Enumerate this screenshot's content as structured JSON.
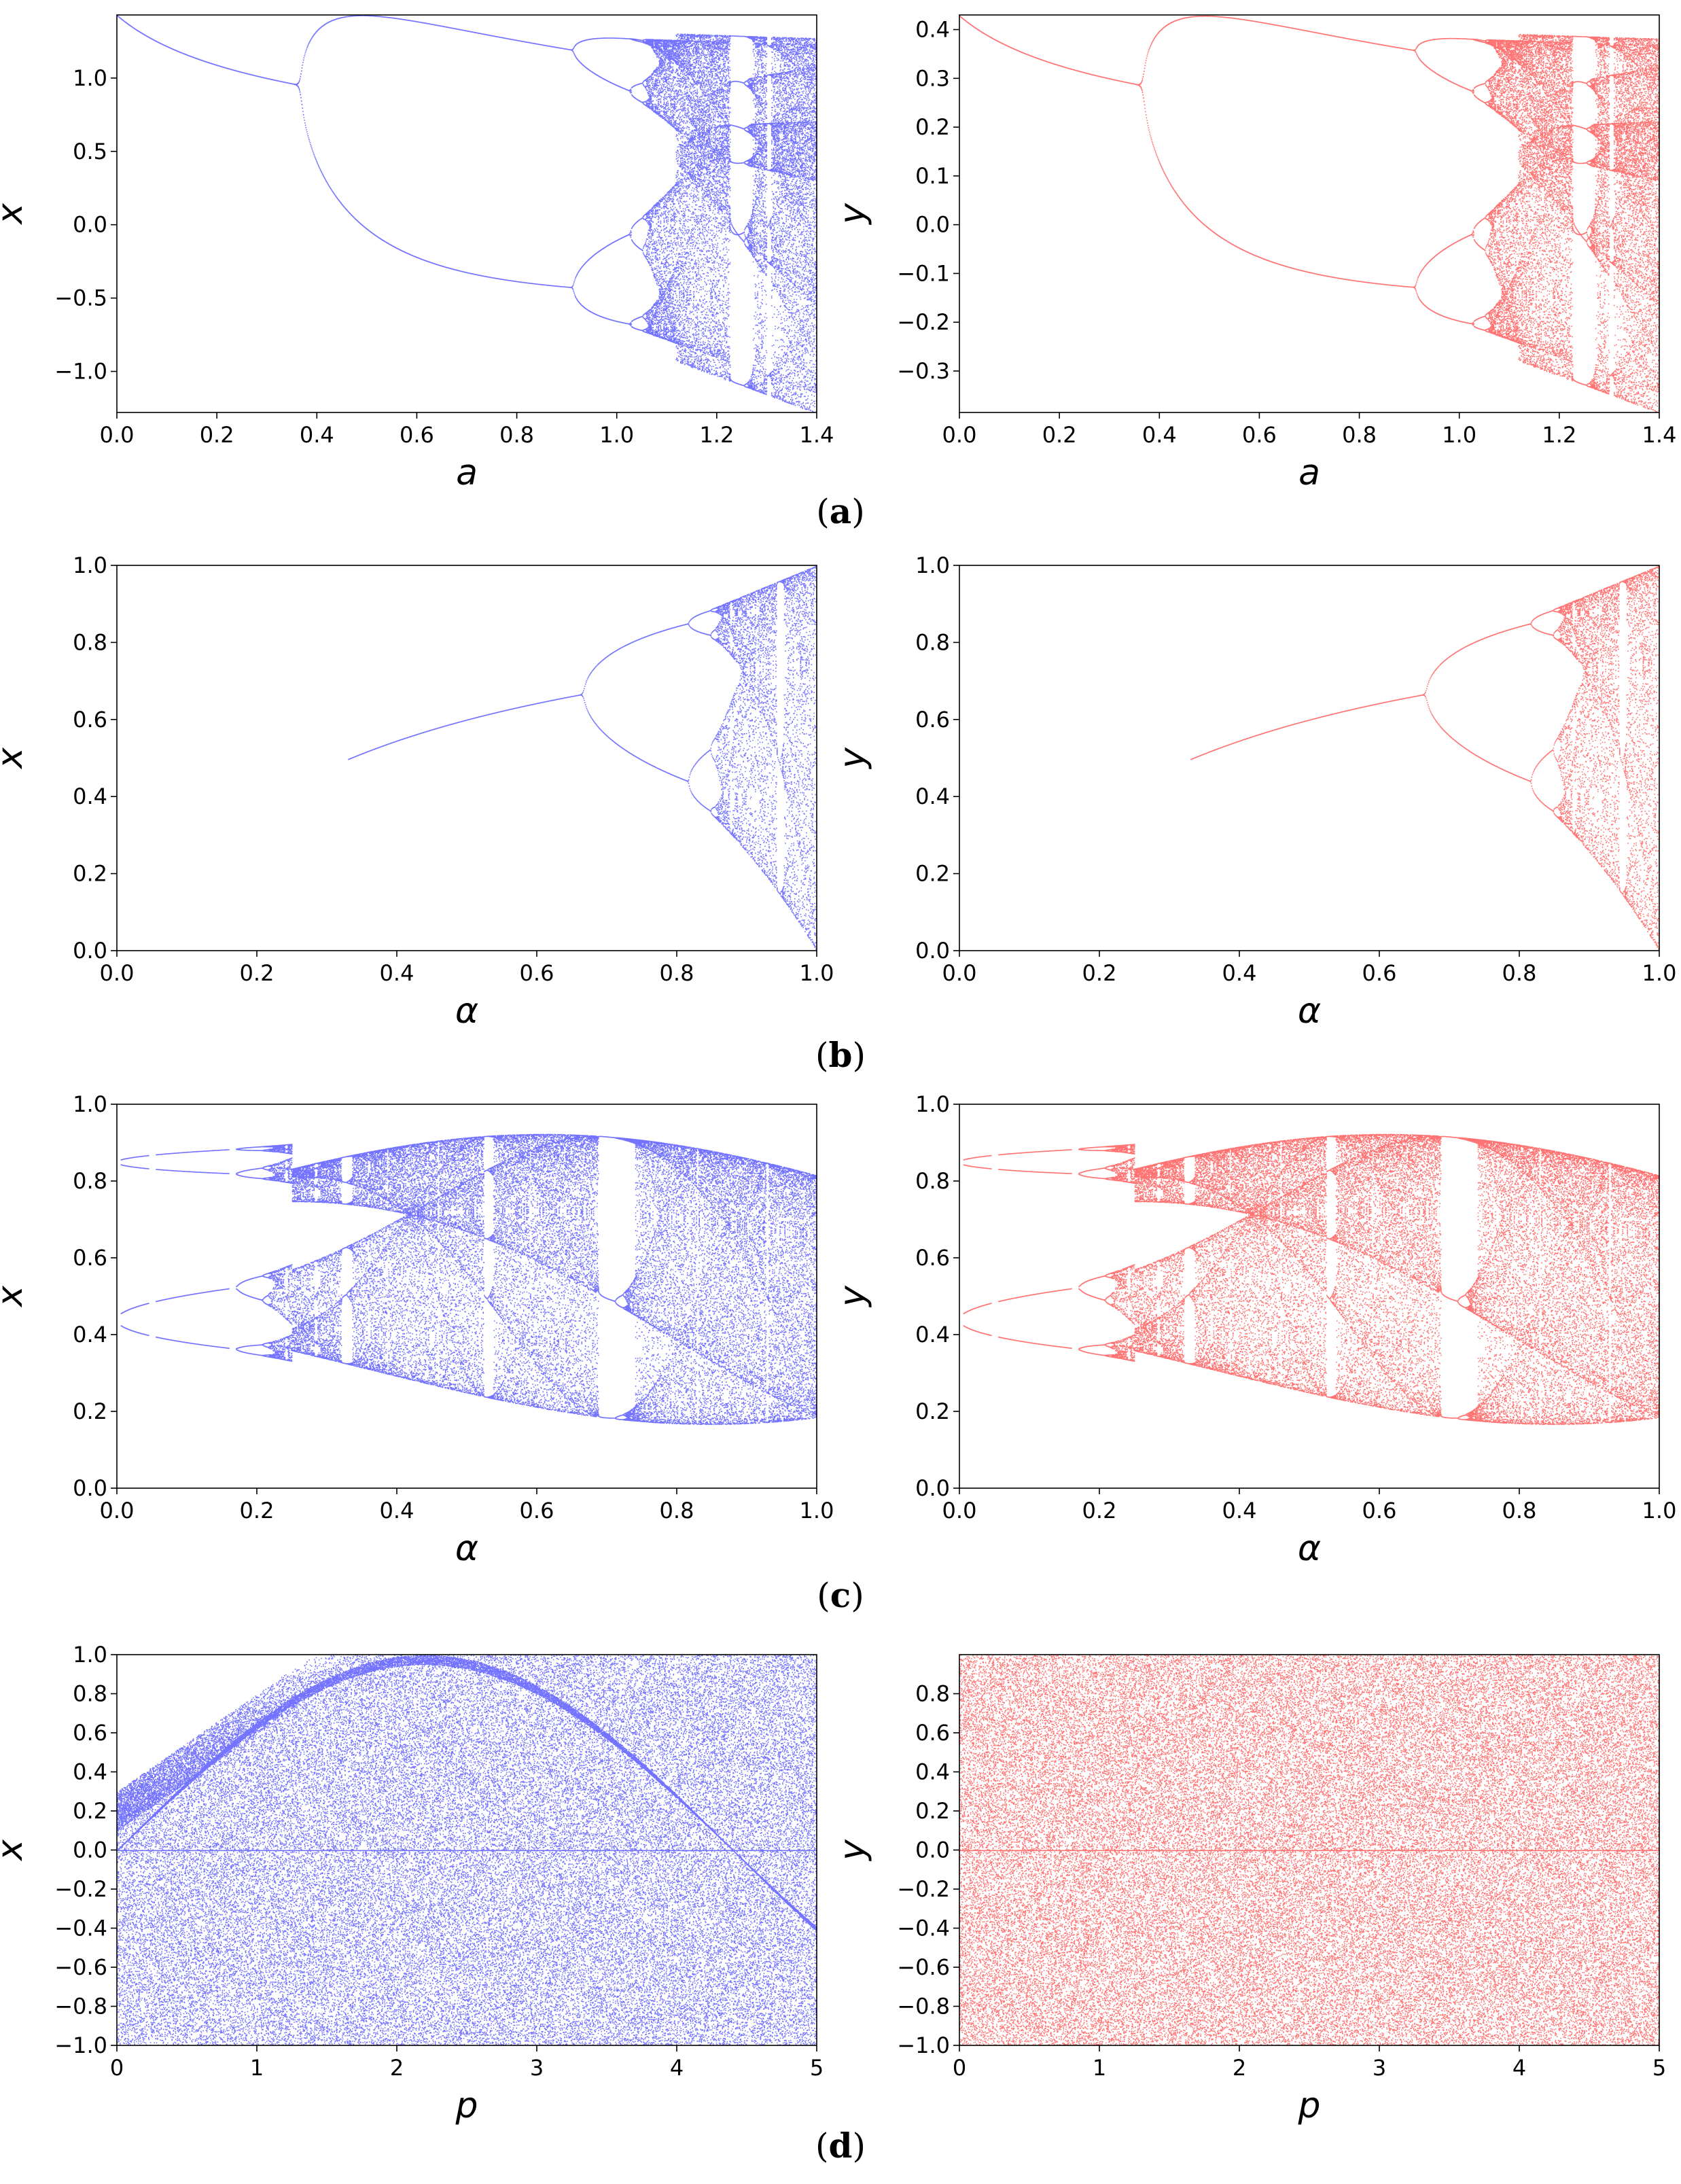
{
  "figure": {
    "captions": [
      {
        "panel": "a",
        "open": "(",
        "letter": "a",
        "close": ")"
      },
      {
        "panel": "b",
        "open": "(",
        "letter": "b",
        "close": ")"
      },
      {
        "panel": "c",
        "open": "(",
        "letter": "c",
        "close": ")"
      },
      {
        "panel": "d",
        "open": "(",
        "letter": "d",
        "close": ")"
      }
    ]
  },
  "chart_data": [
    {
      "id": "a-x",
      "panel": "a",
      "type": "scatter",
      "kind": "henon",
      "title": "",
      "xlabel": "a",
      "ylabel": "x",
      "color": "#0000ff",
      "xlim": [
        0.0,
        1.4
      ],
      "ylim": [
        -1.28,
        1.43
      ],
      "xticks": [
        0.0,
        0.2,
        0.4,
        0.6,
        0.8,
        1.0,
        1.2,
        1.4
      ],
      "xticklabels": [
        "0.0",
        "0.2",
        "0.4",
        "0.6",
        "0.8",
        "1.0",
        "1.2",
        "1.4"
      ],
      "yticks": [
        -1.0,
        -0.5,
        0.0,
        0.5,
        1.0
      ],
      "yticklabels": [
        "−1.0",
        "−0.5",
        "0.0",
        "0.5",
        "1.0"
      ],
      "grid": false,
      "legend": "none"
    },
    {
      "id": "a-y",
      "panel": "a",
      "type": "scatter",
      "kind": "henon",
      "title": "",
      "xlabel": "a",
      "ylabel": "y",
      "color": "#ff0000",
      "xlim": [
        0.0,
        1.4
      ],
      "ylim": [
        -0.385,
        0.43
      ],
      "xticks": [
        0.0,
        0.2,
        0.4,
        0.6,
        0.8,
        1.0,
        1.2,
        1.4
      ],
      "xticklabels": [
        "0.0",
        "0.2",
        "0.4",
        "0.6",
        "0.8",
        "1.0",
        "1.2",
        "1.4"
      ],
      "yticks": [
        -0.3,
        -0.2,
        -0.1,
        0.0,
        0.1,
        0.2,
        0.3,
        0.4
      ],
      "yticklabels": [
        "−0.3",
        "−0.2",
        "−0.1",
        "0.0",
        "0.1",
        "0.2",
        "0.3",
        "0.4"
      ],
      "grid": false,
      "legend": "none"
    },
    {
      "id": "b-x",
      "panel": "b",
      "type": "scatter",
      "kind": "fracB",
      "title": "",
      "xlabel": "α",
      "ylabel": "x",
      "color": "#0000ff",
      "xlim": [
        0.0,
        1.0
      ],
      "ylim": [
        0.0,
        1.0
      ],
      "xticks": [
        0.0,
        0.2,
        0.4,
        0.6,
        0.8,
        1.0
      ],
      "xticklabels": [
        "0.0",
        "0.2",
        "0.4",
        "0.6",
        "0.8",
        "1.0"
      ],
      "yticks": [
        0.0,
        0.2,
        0.4,
        0.6,
        0.8,
        1.0
      ],
      "yticklabels": [
        "0.0",
        "0.2",
        "0.4",
        "0.6",
        "0.8",
        "1.0"
      ],
      "grid": false,
      "legend": "none"
    },
    {
      "id": "b-y",
      "panel": "b",
      "type": "scatter",
      "kind": "fracB",
      "title": "",
      "xlabel": "α",
      "ylabel": "y",
      "color": "#ff0000",
      "xlim": [
        0.0,
        1.0
      ],
      "ylim": [
        0.0,
        1.0
      ],
      "xticks": [
        0.0,
        0.2,
        0.4,
        0.6,
        0.8,
        1.0
      ],
      "xticklabels": [
        "0.0",
        "0.2",
        "0.4",
        "0.6",
        "0.8",
        "1.0"
      ],
      "yticks": [
        0.0,
        0.2,
        0.4,
        0.6,
        0.8,
        1.0
      ],
      "yticklabels": [
        "0.0",
        "0.2",
        "0.4",
        "0.6",
        "0.8",
        "1.0"
      ],
      "grid": false,
      "legend": "none"
    },
    {
      "id": "c-x",
      "panel": "c",
      "type": "scatter",
      "kind": "fracC",
      "title": "",
      "xlabel": "α",
      "ylabel": "x",
      "color": "#0000ff",
      "xlim": [
        0.0,
        1.0
      ],
      "ylim": [
        0.0,
        1.0
      ],
      "xticks": [
        0.0,
        0.2,
        0.4,
        0.6,
        0.8,
        1.0
      ],
      "xticklabels": [
        "0.0",
        "0.2",
        "0.4",
        "0.6",
        "0.8",
        "1.0"
      ],
      "yticks": [
        0.0,
        0.2,
        0.4,
        0.6,
        0.8,
        1.0
      ],
      "yticklabels": [
        "0.0",
        "0.2",
        "0.4",
        "0.6",
        "0.8",
        "1.0"
      ],
      "grid": false,
      "legend": "none"
    },
    {
      "id": "c-y",
      "panel": "c",
      "type": "scatter",
      "kind": "fracC",
      "title": "",
      "xlabel": "α",
      "ylabel": "y",
      "color": "#ff0000",
      "xlim": [
        0.0,
        1.0
      ],
      "ylim": [
        0.0,
        1.0
      ],
      "xticks": [
        0.0,
        0.2,
        0.4,
        0.6,
        0.8,
        1.0
      ],
      "xticklabels": [
        "0.0",
        "0.2",
        "0.4",
        "0.6",
        "0.8",
        "1.0"
      ],
      "yticks": [
        0.0,
        0.2,
        0.4,
        0.6,
        0.8,
        1.0
      ],
      "yticklabels": [
        "0.0",
        "0.2",
        "0.4",
        "0.6",
        "0.8",
        "1.0"
      ],
      "grid": false,
      "legend": "none"
    },
    {
      "id": "d-x",
      "panel": "d",
      "type": "scatter",
      "kind": "pX",
      "title": "",
      "xlabel": "p",
      "ylabel": "x",
      "color": "#0000ff",
      "xlim": [
        0,
        5
      ],
      "ylim": [
        -1.0,
        1.0
      ],
      "xticks": [
        0,
        1,
        2,
        3,
        4,
        5
      ],
      "xticklabels": [
        "0",
        "1",
        "2",
        "3",
        "4",
        "5"
      ],
      "yticks": [
        -1.0,
        -0.8,
        -0.6,
        -0.4,
        -0.2,
        0.0,
        0.2,
        0.4,
        0.6,
        0.8,
        1.0
      ],
      "yticklabels": [
        "−1.0",
        "−0.8",
        "−0.6",
        "−0.4",
        "−0.2",
        "0.0",
        "0.2",
        "0.4",
        "0.6",
        "0.8",
        "1.0"
      ],
      "grid": false,
      "legend": "none"
    },
    {
      "id": "d-y",
      "panel": "d",
      "type": "scatter",
      "kind": "pY",
      "title": "",
      "xlabel": "p",
      "ylabel": "y",
      "color": "#ff0000",
      "xlim": [
        0,
        5
      ],
      "ylim": [
        -1.0,
        1.0
      ],
      "xticks": [
        0,
        1,
        2,
        3,
        4,
        5
      ],
      "xticklabels": [
        "0",
        "1",
        "2",
        "3",
        "4",
        "5"
      ],
      "yticks": [
        -1.0,
        -0.8,
        -0.6,
        -0.4,
        -0.2,
        0.0,
        0.2,
        0.4,
        0.6,
        0.8
      ],
      "yticklabels": [
        "−1.0",
        "−0.8",
        "−0.6",
        "−0.4",
        "−0.2",
        "0.0",
        "0.2",
        "0.4",
        "0.6",
        "0.8"
      ],
      "grid": false,
      "legend": "none"
    }
  ]
}
